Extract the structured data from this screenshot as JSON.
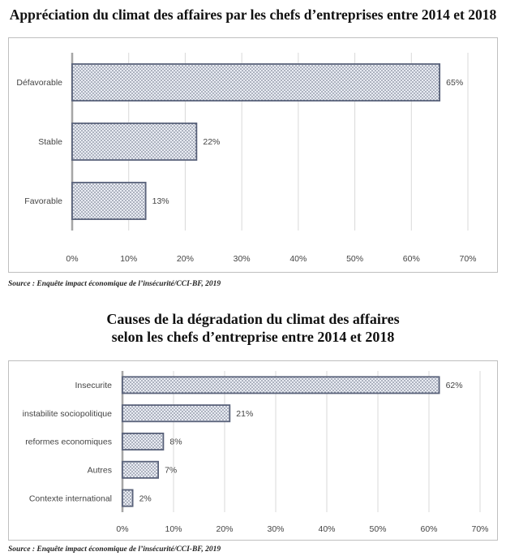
{
  "charts": [
    {
      "chart_data": {
        "type": "bar",
        "orientation": "horizontal",
        "title": "Appréciation du climat des affaires par les chefs d’entreprises entre 2014 et 2018",
        "categories": [
          "Défavorable",
          "Stable",
          "Favorable"
        ],
        "values": [
          65,
          22,
          13
        ],
        "value_labels": [
          "65%",
          "22%",
          "13%"
        ],
        "xlim": [
          0,
          70
        ],
        "xticks": [
          0,
          10,
          20,
          30,
          40,
          50,
          60,
          70
        ],
        "xtick_labels": [
          "0%",
          "10%",
          "20%",
          "30%",
          "40%",
          "50%",
          "60%",
          "70%"
        ],
        "grid": "vertical",
        "pattern": "dotted"
      },
      "source": "Source : Enquête impact économique de l’insécurité/CCI-BF, 2019"
    },
    {
      "chart_data": {
        "type": "bar",
        "orientation": "horizontal",
        "title_lines": [
          "Causes de la dégradation du climat des affaires",
          "selon les chefs d’entreprise entre 2014 et 2018"
        ],
        "categories": [
          "Insecurite",
          "instabilite sociopolitique",
          "reformes economiques",
          "Autres",
          "Contexte international"
        ],
        "values": [
          62,
          21,
          8,
          7,
          2
        ],
        "value_labels": [
          "62%",
          "21%",
          "8%",
          "7%",
          "2%"
        ],
        "xlim": [
          0,
          70
        ],
        "xticks": [
          0,
          10,
          20,
          30,
          40,
          50,
          60,
          70
        ],
        "xtick_labels": [
          "0%",
          "10%",
          "20%",
          "30%",
          "40%",
          "50%",
          "60%",
          "70%"
        ],
        "grid": "vertical",
        "pattern": "dotted"
      },
      "source": "Source : Enquête impact économique de l’insécurité/CCI-BF, 2019"
    }
  ]
}
